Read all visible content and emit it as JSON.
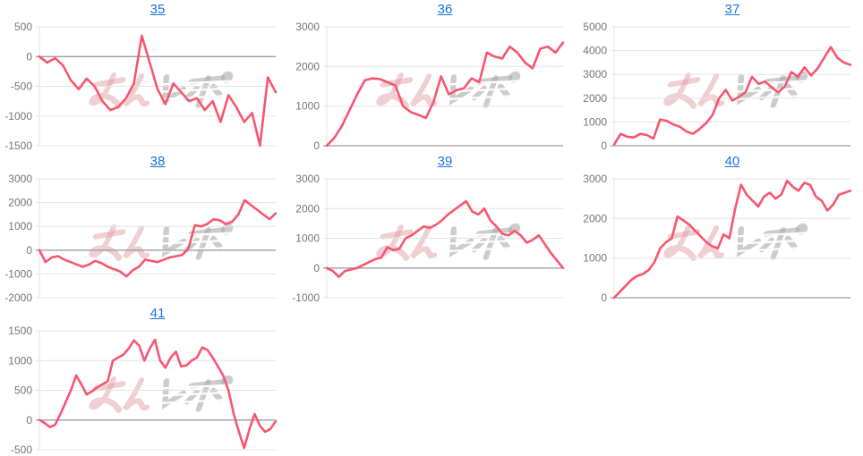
{
  "page": {
    "background": "#ffffff"
  },
  "colors": {
    "line": "#f8566e",
    "grid": "#e3e3e3",
    "baseline": "#9e9e9e",
    "title_link": "#1a73e8",
    "tick_label": "#757575",
    "wm_pink": "#dc8f99",
    "wm_gray": "#9b9b9b"
  },
  "watermark": {
    "text": "みんレポ"
  },
  "chart_data": [
    {
      "type": "line",
      "title": "35",
      "ylim": [
        -1500,
        500
      ],
      "yticks": [
        500,
        0,
        -500,
        -1000,
        -1500
      ],
      "grid": true,
      "x_labels_visible": false,
      "values": [
        0,
        -100,
        -30,
        -150,
        -400,
        -550,
        -370,
        -500,
        -750,
        -900,
        -850,
        -700,
        -450,
        350,
        -100,
        -550,
        -800,
        -450,
        -600,
        -750,
        -700,
        -900,
        -750,
        -1100,
        -650,
        -850,
        -1100,
        -950,
        -1500,
        -350,
        -600
      ]
    },
    {
      "type": "line",
      "title": "36",
      "ylim": [
        0,
        3000
      ],
      "yticks": [
        3000,
        2000,
        1000,
        0
      ],
      "grid": true,
      "x_labels_visible": false,
      "values": [
        0,
        200,
        500,
        900,
        1300,
        1650,
        1700,
        1680,
        1600,
        1520,
        1000,
        850,
        780,
        700,
        1100,
        1750,
        1300,
        1400,
        1450,
        1700,
        1600,
        2350,
        2250,
        2200,
        2500,
        2350,
        2100,
        1950,
        2450,
        2500,
        2350,
        2600
      ]
    },
    {
      "type": "line",
      "title": "37",
      "ylim": [
        0,
        5000
      ],
      "yticks": [
        5000,
        4000,
        3000,
        2000,
        1000,
        0
      ],
      "grid": true,
      "x_labels_visible": false,
      "values": [
        50,
        500,
        380,
        350,
        500,
        450,
        300,
        1100,
        1050,
        900,
        800,
        600,
        500,
        700,
        950,
        1300,
        2000,
        2350,
        1900,
        2050,
        2250,
        2900,
        2600,
        2700,
        2450,
        2250,
        2500,
        3100,
        2900,
        3300,
        2950,
        3250,
        3700,
        4150,
        3700,
        3500,
        3400
      ]
    },
    {
      "type": "line",
      "title": "38",
      "ylim": [
        -2000,
        3000
      ],
      "yticks": [
        3000,
        2000,
        1000,
        0,
        -1000,
        -2000
      ],
      "grid": true,
      "x_labels_visible": false,
      "values": [
        0,
        -500,
        -300,
        -250,
        -400,
        -500,
        -600,
        -700,
        -600,
        -450,
        -550,
        -700,
        -800,
        -900,
        -1100,
        -850,
        -700,
        -400,
        -450,
        -500,
        -400,
        -300,
        -250,
        -200,
        100,
        1050,
        1000,
        1100,
        1300,
        1250,
        1100,
        1200,
        1500,
        2100,
        1900,
        1700,
        1500,
        1300,
        1550
      ]
    },
    {
      "type": "line",
      "title": "39",
      "ylim": [
        -1000,
        3000
      ],
      "yticks": [
        3000,
        2000,
        1000,
        0,
        -1000
      ],
      "grid": true,
      "x_labels_visible": false,
      "values": [
        0,
        -100,
        -300,
        -100,
        -50,
        0,
        100,
        200,
        300,
        350,
        700,
        600,
        650,
        1000,
        1100,
        1250,
        1400,
        1350,
        1450,
        1600,
        1800,
        1950,
        2100,
        2250,
        1900,
        1800,
        2000,
        1600,
        1400,
        1150,
        1100,
        1250,
        1100,
        850,
        950,
        1100,
        800,
        500,
        250,
        0
      ]
    },
    {
      "type": "line",
      "title": "40",
      "ylim": [
        0,
        3000
      ],
      "yticks": [
        3000,
        2000,
        1000,
        0
      ],
      "grid": true,
      "x_labels_visible": false,
      "values": [
        0,
        150,
        300,
        450,
        550,
        600,
        700,
        900,
        1250,
        1400,
        1500,
        2050,
        1950,
        1850,
        1700,
        1550,
        1400,
        1300,
        1250,
        1600,
        1500,
        2250,
        2850,
        2600,
        2450,
        2300,
        2550,
        2650,
        2500,
        2600,
        2950,
        2800,
        2700,
        2900,
        2850,
        2550,
        2450,
        2200,
        2350,
        2600,
        2650,
        2700
      ]
    },
    {
      "type": "line",
      "title": "41",
      "ylim": [
        -500,
        1500
      ],
      "yticks": [
        1500,
        1000,
        500,
        0,
        -500
      ],
      "grid": true,
      "x_labels_visible": false,
      "values": [
        0,
        -50,
        -120,
        -80,
        100,
        300,
        500,
        750,
        600,
        430,
        480,
        550,
        600,
        650,
        1000,
        1050,
        1100,
        1200,
        1340,
        1250,
        1000,
        1200,
        1350,
        1000,
        880,
        1050,
        1150,
        900,
        920,
        1000,
        1050,
        1220,
        1180,
        1050,
        900,
        750,
        500,
        100,
        -200,
        -470,
        -150,
        100,
        -100,
        -200,
        -150,
        -20
      ]
    }
  ]
}
